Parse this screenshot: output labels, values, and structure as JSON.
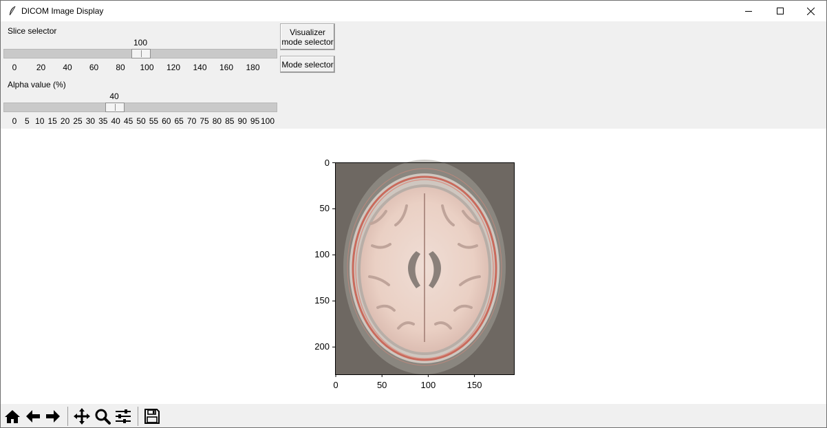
{
  "window": {
    "title": "DICOM Image Display"
  },
  "slice_selector": {
    "label": "Slice selector",
    "value": "100",
    "value_num": 100,
    "min": 0,
    "max": 199,
    "ticks": [
      "0",
      "20",
      "40",
      "60",
      "80",
      "100",
      "120",
      "140",
      "160",
      "180"
    ]
  },
  "alpha_selector": {
    "label": "Alpha value (%)",
    "value": "40",
    "value_num": 40,
    "min": 0,
    "max": 100,
    "ticks": [
      "0",
      "5",
      "10",
      "15",
      "20",
      "25",
      "30",
      "35",
      "40",
      "45",
      "50",
      "55",
      "60",
      "65",
      "70",
      "75",
      "80",
      "85",
      "90",
      "95",
      "100"
    ]
  },
  "buttons": {
    "visualizer_mode_line1": "Visualizer",
    "visualizer_mode_line2": "mode selector",
    "mode_selector": "Mode selector"
  },
  "plot": {
    "y_ticks": [
      "0",
      "50",
      "100",
      "150",
      "200"
    ],
    "x_ticks": [
      "0",
      "50",
      "100",
      "150"
    ]
  },
  "toolbar": {
    "icons": [
      "home-icon",
      "back-arrow-icon",
      "forward-arrow-icon",
      "pan-icon",
      "zoom-icon",
      "configure-subplots-icon",
      "save-icon"
    ]
  },
  "colors": {
    "panel_bg": "#f0f0f0",
    "image_bg": "#6e6862",
    "brain_tissue": "#ecd2c8",
    "skull_highlight": "#c96a5c"
  }
}
